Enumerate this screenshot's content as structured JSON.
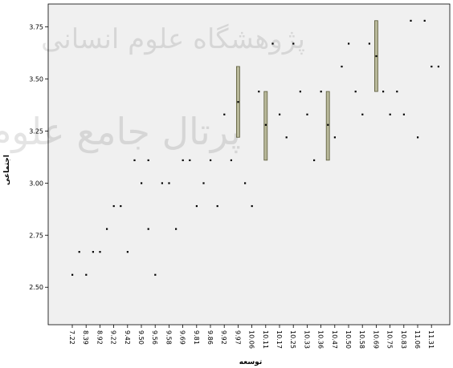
{
  "chart_data": {
    "type": "scatter",
    "xlabel": "توسعه",
    "ylabel": "اجتماعی",
    "ylim": [
      2.32,
      3.86
    ],
    "y_ticks": [
      2.5,
      2.75,
      3.0,
      3.25,
      3.5,
      3.75
    ],
    "y_tick_labels": [
      "2.50",
      "2.75",
      "3.00",
      "3.25",
      "3.50",
      "3.75"
    ],
    "x_categories": [
      "7.22",
      "8.39",
      "8.92",
      "9.22",
      "9.42",
      "9.50",
      "9.56",
      "9.58",
      "9.69",
      "9.81",
      "9.86",
      "9.92",
      "9.97",
      "10.06",
      "10.11",
      "10.17",
      "10.25",
      "10.33",
      "10.36",
      "10.47",
      "10.50",
      "10.58",
      "10.69",
      "10.75",
      "10.83",
      "11.06",
      "11.31"
    ],
    "points": [
      {
        "x": 0.0,
        "y": 2.56
      },
      {
        "x": 0.5,
        "y": 2.67
      },
      {
        "x": 1.0,
        "y": 2.56
      },
      {
        "x": 1.5,
        "y": 2.67
      },
      {
        "x": 2.0,
        "y": 2.67
      },
      {
        "x": 2.5,
        "y": 2.78
      },
      {
        "x": 3.0,
        "y": 2.89
      },
      {
        "x": 3.5,
        "y": 2.89
      },
      {
        "x": 4.0,
        "y": 2.67
      },
      {
        "x": 4.5,
        "y": 3.11
      },
      {
        "x": 5.0,
        "y": 3.0
      },
      {
        "x": 5.5,
        "y": 2.78
      },
      {
        "x": 5.5,
        "y": 3.11
      },
      {
        "x": 6.0,
        "y": 2.56
      },
      {
        "x": 6.5,
        "y": 3.0
      },
      {
        "x": 7.0,
        "y": 3.0
      },
      {
        "x": 7.5,
        "y": 2.78
      },
      {
        "x": 8.0,
        "y": 3.11
      },
      {
        "x": 8.5,
        "y": 3.11
      },
      {
        "x": 9.0,
        "y": 2.89
      },
      {
        "x": 9.5,
        "y": 3.0
      },
      {
        "x": 10.0,
        "y": 3.11
      },
      {
        "x": 10.5,
        "y": 2.89
      },
      {
        "x": 11.0,
        "y": 3.33
      },
      {
        "x": 11.5,
        "y": 3.11
      },
      {
        "x": 12.0,
        "y": 3.39
      },
      {
        "x": 12.5,
        "y": 3.0
      },
      {
        "x": 13.0,
        "y": 2.89
      },
      {
        "x": 13.5,
        "y": 3.44
      },
      {
        "x": 14.0,
        "y": 3.28
      },
      {
        "x": 14.5,
        "y": 3.67
      },
      {
        "x": 15.0,
        "y": 3.33
      },
      {
        "x": 15.5,
        "y": 3.22
      },
      {
        "x": 16.0,
        "y": 3.67
      },
      {
        "x": 16.5,
        "y": 3.44
      },
      {
        "x": 17.0,
        "y": 3.33
      },
      {
        "x": 17.5,
        "y": 3.11
      },
      {
        "x": 18.0,
        "y": 3.44
      },
      {
        "x": 18.5,
        "y": 3.28
      },
      {
        "x": 19.0,
        "y": 3.22
      },
      {
        "x": 19.5,
        "y": 3.56
      },
      {
        "x": 20.0,
        "y": 3.67
      },
      {
        "x": 20.5,
        "y": 3.44
      },
      {
        "x": 21.0,
        "y": 3.33
      },
      {
        "x": 21.5,
        "y": 3.67
      },
      {
        "x": 22.0,
        "y": 3.61
      },
      {
        "x": 22.5,
        "y": 3.44
      },
      {
        "x": 23.0,
        "y": 3.33
      },
      {
        "x": 23.5,
        "y": 3.44
      },
      {
        "x": 24.0,
        "y": 3.33
      },
      {
        "x": 24.5,
        "y": 3.78
      },
      {
        "x": 25.0,
        "y": 3.22
      },
      {
        "x": 25.5,
        "y": 3.78
      },
      {
        "x": 26.0,
        "y": 3.56
      },
      {
        "x": 26.5,
        "y": 3.56
      }
    ],
    "range_bars": [
      {
        "x": 12.0,
        "low": 3.22,
        "high": 3.56
      },
      {
        "x": 14.0,
        "low": 3.11,
        "high": 3.44
      },
      {
        "x": 18.5,
        "low": 3.11,
        "high": 3.44
      },
      {
        "x": 22.0,
        "low": 3.44,
        "high": 3.78
      }
    ],
    "grid": false,
    "colors": {
      "plot_bg": "#f0f0f0",
      "bar_fill": "#b8b89a",
      "bar_stroke": "#5a5a3a",
      "marker": "#000000",
      "axis": "#000000"
    }
  },
  "watermark": {
    "line1": "پژوهشگاه علوم انسانی",
    "line2": "پرتال جامع علوم"
  }
}
